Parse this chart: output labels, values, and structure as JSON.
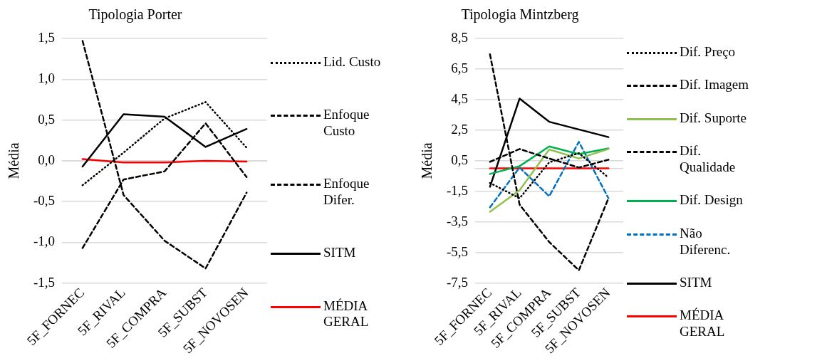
{
  "chart_data": [
    {
      "type": "line",
      "title": "Tipologia Porter",
      "ylabel": "Média",
      "categories": [
        "5F_FORNEC",
        "5F_RIVAL",
        "5F_COMPRA",
        "5F_SUBST",
        "5F_NOVOSEN"
      ],
      "ylim": [
        -1.5,
        1.5
      ],
      "yticks": [
        {
          "value": -1.5,
          "label": "-1,5"
        },
        {
          "value": -1,
          "label": "-1,0"
        },
        {
          "value": -0.5,
          "label": "-0,5"
        },
        {
          "value": 0,
          "label": "0,0"
        },
        {
          "value": 0.5,
          "label": "0,5"
        },
        {
          "value": 1,
          "label": "1,0"
        },
        {
          "value": 1.5,
          "label": "1,5"
        }
      ],
      "grid": "y",
      "legend": "right",
      "marker": "none",
      "series": [
        {
          "name": "Lid. Custo",
          "color": "#000000",
          "line_style": "dotted",
          "values": [
            -0.3,
            0.1,
            0.52,
            0.72,
            0.16
          ]
        },
        {
          "name": "Enfoque Custo",
          "color": "#000000",
          "line_style": "dashed",
          "values": [
            -1.07,
            -0.23,
            -0.13,
            0.46,
            -0.2
          ]
        },
        {
          "name": "Enfoque Difer.",
          "color": "#000000",
          "line_style": "dashed",
          "values": [
            1.47,
            -0.42,
            -0.98,
            -1.32,
            -0.39
          ]
        },
        {
          "name": "SITM",
          "color": "#000000",
          "line_style": "solid",
          "values": [
            -0.07,
            0.57,
            0.54,
            0.17,
            0.39
          ]
        },
        {
          "name": "MÉDIA GERAL",
          "color": "#ff0000",
          "line_style": "solid",
          "values": [
            0.02,
            -0.02,
            -0.02,
            0,
            -0.01
          ]
        }
      ]
    },
    {
      "type": "line",
      "title": "Tipologia Mintzberg",
      "ylabel": "Média",
      "categories": [
        "5F_FORNEC",
        "5F_RIVAL",
        "5F_COMPRA",
        "5F_SUBST",
        "5F_NOVOSEN"
      ],
      "ylim": [
        -7.5,
        8.5
      ],
      "yticks": [
        {
          "value": -7.5,
          "label": "-7,5"
        },
        {
          "value": -5.5,
          "label": "-5,5"
        },
        {
          "value": -3.5,
          "label": "-3,5"
        },
        {
          "value": -1.5,
          "label": "-1,5"
        },
        {
          "value": 0.5,
          "label": "0,5"
        },
        {
          "value": 2.5,
          "label": "2,5"
        },
        {
          "value": 4.5,
          "label": "4,5"
        },
        {
          "value": 6.5,
          "label": "6,5"
        },
        {
          "value": 8.5,
          "label": "8,5"
        }
      ],
      "grid": "y",
      "legend": "right",
      "marker": "none",
      "series": [
        {
          "name": "Dif. Preço",
          "color": "#000000",
          "line_style": "dotted",
          "values": [
            -0.95,
            -1.95,
            0.4,
            1.0,
            -0.6
          ]
        },
        {
          "name": "Dif. Imagem",
          "color": "#000000",
          "line_style": "dashed",
          "values": [
            0.43,
            1.27,
            0.65,
            0.06,
            0.57
          ]
        },
        {
          "name": "Dif. Suporte",
          "color": "#92c050",
          "line_style": "solid",
          "values": [
            -2.83,
            -1.42,
            1.24,
            0.65,
            1.27
          ]
        },
        {
          "name": "Dif. Qualidade",
          "color": "#000000",
          "line_style": "dashed",
          "values": [
            7.46,
            -2.37,
            -4.81,
            -6.66,
            -1.95
          ]
        },
        {
          "name": "Dif. Design",
          "color": "#00b050",
          "line_style": "solid",
          "values": [
            -0.36,
            0.15,
            1.44,
            0.94,
            1.31
          ]
        },
        {
          "name": "Não Diferenc.",
          "color": "#0070c0",
          "line_style": "dashed",
          "values": [
            -2.54,
            0.06,
            -1.82,
            1.74,
            -1.95
          ]
        },
        {
          "name": "SITM",
          "color": "#000000",
          "line_style": "solid",
          "values": [
            -1.2,
            4.57,
            3.05,
            2.55,
            2.05
          ]
        },
        {
          "name": "MÉDIA GERAL",
          "color": "#ff0000",
          "line_style": "solid",
          "values": [
            0.01,
            0.01,
            0.01,
            0.01,
            0.01
          ]
        }
      ]
    }
  ]
}
